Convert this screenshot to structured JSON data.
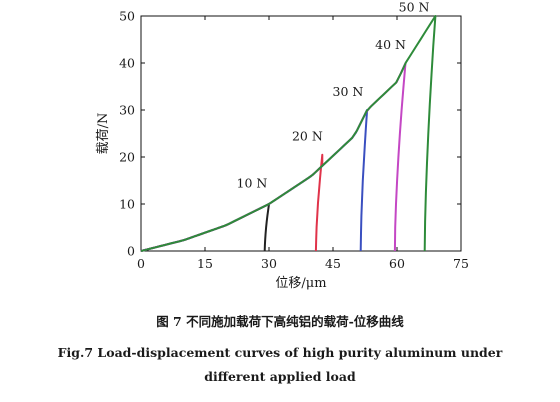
{
  "chart_data": {
    "type": "line",
    "xlabel": "位移/μm",
    "ylabel": "载荷/N",
    "xlim": [
      0,
      75
    ],
    "ylim": [
      0,
      50
    ],
    "xticks": [
      0,
      15,
      30,
      45,
      60,
      75
    ],
    "yticks": [
      0,
      10,
      20,
      30,
      40,
      50
    ],
    "grid": false,
    "loading_curve": {
      "x": [
        0,
        10,
        20,
        30,
        40,
        50,
        53,
        60,
        62,
        69
      ],
      "y": [
        0,
        2.3,
        5.5,
        10,
        16,
        24.5,
        30,
        36,
        40,
        50
      ]
    },
    "series": [
      {
        "name": "10 N",
        "color": "#222222",
        "peak": [
          30,
          10
        ],
        "unload_end": [
          29,
          0
        ],
        "label_at": [
          26,
          13.5
        ]
      },
      {
        "name": "20 N",
        "color": "#e0334a",
        "peak": [
          42.5,
          20.5
        ],
        "unload_end": [
          41,
          0
        ],
        "label_at": [
          39,
          23.5
        ]
      },
      {
        "name": "30 N",
        "color": "#3a4fc0",
        "peak": [
          53,
          30
        ],
        "unload_end": [
          51.5,
          0
        ],
        "label_at": [
          48.5,
          33
        ]
      },
      {
        "name": "40 N",
        "color": "#c447c4",
        "peak": [
          62,
          40
        ],
        "unload_end": [
          59.5,
          0
        ],
        "label_at": [
          58.5,
          43
        ]
      },
      {
        "name": "50 N",
        "color": "#2e8b3a",
        "peak": [
          69,
          50
        ],
        "unload_end": [
          66.5,
          0
        ],
        "label_at": [
          64,
          51
        ]
      }
    ]
  },
  "caption": {
    "zh": "图 7   不同施加载荷下高纯铝的载荷-位移曲线",
    "en_line1": "Fig.7    Load-displacement curves of high purity aluminum under",
    "en_line2": "different applied load"
  }
}
